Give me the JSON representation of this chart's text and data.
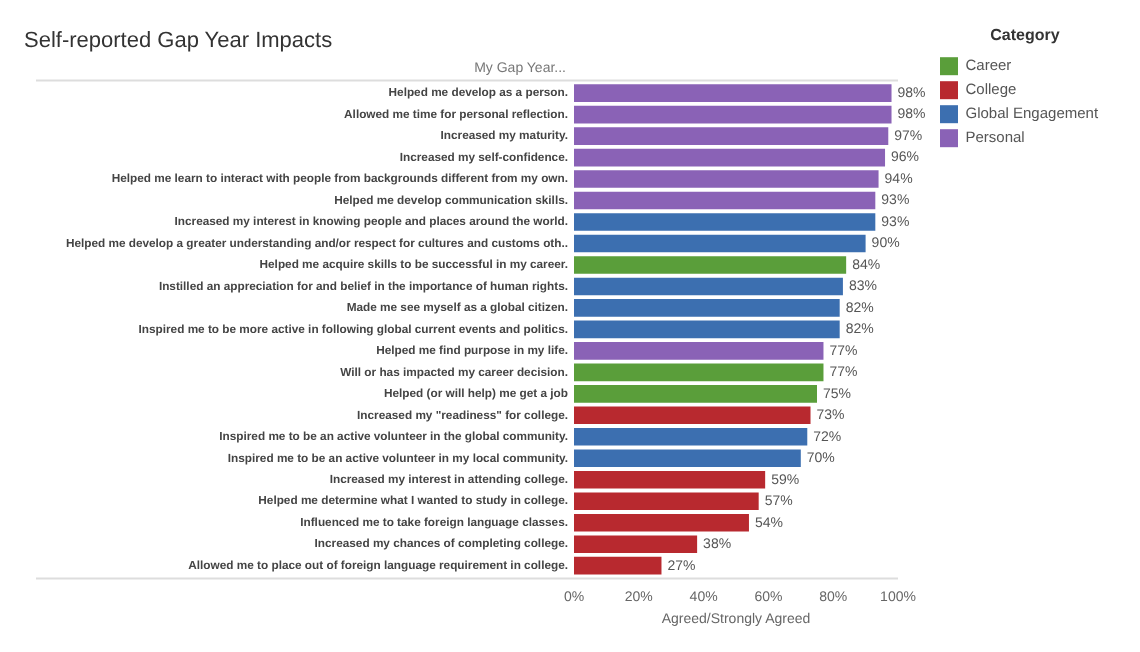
{
  "chart_data": {
    "type": "bar",
    "orientation": "horizontal",
    "stacked": true,
    "title": "Self-reported Gap Year Impacts",
    "ylabel": "My Gap Year...",
    "xlabel": "Agreed/Strongly Agreed",
    "legend_title": "Category",
    "legend": "top right",
    "grid": false,
    "categories": [
      "Helped me develop as a person.",
      "Allowed me time for personal reflection.",
      "Increased my maturity.",
      "Increased my self-confidence.",
      "Helped me learn to interact with people from backgrounds different from my own.",
      "Helped me develop communication skills.",
      "Increased my interest in knowing people and places around the world.",
      "Helped me develop a greater understanding and/or respect for cultures and customs oth..",
      "Helped me acquire skills to be successful in my career.",
      "Instilled an appreciation for and belief in the importance of human rights.",
      "Made me see myself as a global citizen.",
      "Inspired me to be more active in following global current events and politics.",
      "Helped me find purpose in my life.",
      "Will or has impacted my career decision.",
      "Helped (or will help) me get a job",
      "Increased my \"readiness\" for college.",
      "Inspired me to be an active volunteer in the global community.",
      "Inspired me to be an active volunteer in my local community.",
      "Increased my interest in attending college.",
      "Helped me determine what I wanted to study in college.",
      "Influenced me to take foreign language classes.",
      "Increased my chances of completing college.",
      "Allowed me to place out of foreign language requirement in college."
    ],
    "xlim": [
      0,
      100
    ],
    "xticks": [
      {
        "value": 0,
        "label": "0%"
      },
      {
        "value": 20,
        "label": "20%"
      },
      {
        "value": 40,
        "label": "40%"
      },
      {
        "value": 60,
        "label": "60%"
      },
      {
        "value": 80,
        "label": "80%"
      },
      {
        "value": 100,
        "label": "100%"
      }
    ],
    "series": [
      {
        "name": "Career",
        "color": "#5a9e3a",
        "values": [
          null,
          null,
          null,
          null,
          null,
          null,
          null,
          null,
          84,
          null,
          null,
          null,
          null,
          77,
          75,
          null,
          null,
          null,
          null,
          null,
          null,
          null,
          null
        ],
        "value_labels": [
          null,
          null,
          null,
          null,
          null,
          null,
          null,
          null,
          "84%",
          null,
          null,
          null,
          null,
          "77%",
          "75%",
          null,
          null,
          null,
          null,
          null,
          null,
          null,
          null
        ]
      },
      {
        "name": "College",
        "color": "#b8292f",
        "values": [
          null,
          null,
          null,
          null,
          null,
          null,
          null,
          null,
          null,
          null,
          null,
          null,
          null,
          null,
          null,
          73,
          null,
          null,
          59,
          57,
          54,
          38,
          27
        ],
        "value_labels": [
          null,
          null,
          null,
          null,
          null,
          null,
          null,
          null,
          null,
          null,
          null,
          null,
          null,
          null,
          null,
          "73%",
          null,
          null,
          "59%",
          "57%",
          "54%",
          "38%",
          "27%"
        ]
      },
      {
        "name": "Global Engagement",
        "color": "#3c6fb0",
        "values": [
          null,
          null,
          null,
          null,
          null,
          null,
          93,
          90,
          null,
          83,
          82,
          82,
          null,
          null,
          null,
          null,
          72,
          70,
          null,
          null,
          null,
          null,
          null
        ],
        "value_labels": [
          null,
          null,
          null,
          null,
          null,
          null,
          "93%",
          "90%",
          null,
          "83%",
          "82%",
          "82%",
          null,
          null,
          null,
          null,
          "72%",
          "70%",
          null,
          null,
          null,
          null,
          null
        ]
      },
      {
        "name": "Personal",
        "color": "#8a62b6",
        "values": [
          98,
          98,
          97,
          96,
          94,
          93,
          null,
          null,
          null,
          null,
          null,
          null,
          77,
          null,
          null,
          null,
          null,
          null,
          null,
          null,
          null,
          null,
          null
        ],
        "value_labels": [
          "98%",
          "98%",
          "97%",
          "96%",
          "94%",
          "93%",
          null,
          null,
          null,
          null,
          null,
          null,
          "77%",
          null,
          null,
          null,
          null,
          null,
          null,
          null,
          null,
          null,
          null
        ]
      }
    ]
  }
}
